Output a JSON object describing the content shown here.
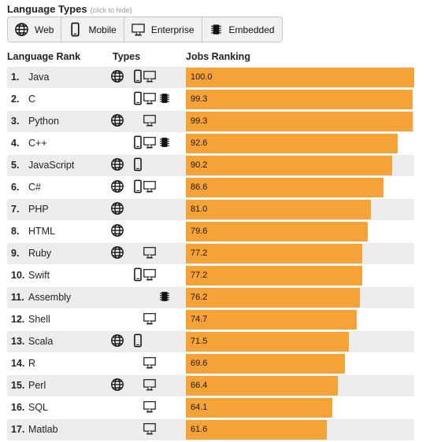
{
  "header": {
    "title": "Language Types",
    "hint": "(click to hide)"
  },
  "types": [
    {
      "icon": "globe-icon",
      "label": "Web"
    },
    {
      "icon": "mobile-icon",
      "label": "Mobile"
    },
    {
      "icon": "monitor-icon",
      "label": "Enterprise"
    },
    {
      "icon": "chip-icon",
      "label": "Embedded"
    }
  ],
  "columns": {
    "rank": "Language Rank",
    "types": "Types",
    "jobs": "Jobs Ranking"
  },
  "colors": {
    "bar": "#f5a236",
    "stripe": "#ececec"
  },
  "languages": [
    {
      "rank": "1.",
      "name": "Java",
      "score": "100.0",
      "web": true,
      "mobile": true,
      "enterprise": true,
      "embedded": false
    },
    {
      "rank": "2.",
      "name": "C",
      "score": "99.3",
      "web": false,
      "mobile": true,
      "enterprise": true,
      "embedded": true
    },
    {
      "rank": "3.",
      "name": "Python",
      "score": "99.3",
      "web": true,
      "mobile": false,
      "enterprise": true,
      "embedded": false
    },
    {
      "rank": "4.",
      "name": "C++",
      "score": "92.6",
      "web": false,
      "mobile": true,
      "enterprise": true,
      "embedded": true
    },
    {
      "rank": "5.",
      "name": "JavaScript",
      "score": "90.2",
      "web": true,
      "mobile": true,
      "enterprise": false,
      "embedded": false
    },
    {
      "rank": "6.",
      "name": "C#",
      "score": "86.6",
      "web": true,
      "mobile": true,
      "enterprise": true,
      "embedded": false
    },
    {
      "rank": "7.",
      "name": "PHP",
      "score": "81.0",
      "web": true,
      "mobile": false,
      "enterprise": false,
      "embedded": false
    },
    {
      "rank": "8.",
      "name": "HTML",
      "score": "79.6",
      "web": true,
      "mobile": false,
      "enterprise": false,
      "embedded": false
    },
    {
      "rank": "9.",
      "name": "Ruby",
      "score": "77.2",
      "web": true,
      "mobile": false,
      "enterprise": true,
      "embedded": false
    },
    {
      "rank": "10.",
      "name": "Swift",
      "score": "77.2",
      "web": false,
      "mobile": true,
      "enterprise": true,
      "embedded": false
    },
    {
      "rank": "11.",
      "name": "Assembly",
      "score": "76.2",
      "web": false,
      "mobile": false,
      "enterprise": false,
      "embedded": true
    },
    {
      "rank": "12.",
      "name": "Shell",
      "score": "74.7",
      "web": false,
      "mobile": false,
      "enterprise": true,
      "embedded": false
    },
    {
      "rank": "13.",
      "name": "Scala",
      "score": "71.5",
      "web": true,
      "mobile": true,
      "enterprise": false,
      "embedded": false
    },
    {
      "rank": "14.",
      "name": "R",
      "score": "69.6",
      "web": false,
      "mobile": false,
      "enterprise": true,
      "embedded": false
    },
    {
      "rank": "15.",
      "name": "Perl",
      "score": "66.4",
      "web": true,
      "mobile": false,
      "enterprise": true,
      "embedded": false
    },
    {
      "rank": "16.",
      "name": "SQL",
      "score": "64.1",
      "web": false,
      "mobile": false,
      "enterprise": true,
      "embedded": false
    },
    {
      "rank": "17.",
      "name": "Matlab",
      "score": "61.6",
      "web": false,
      "mobile": false,
      "enterprise": true,
      "embedded": false
    }
  ]
}
